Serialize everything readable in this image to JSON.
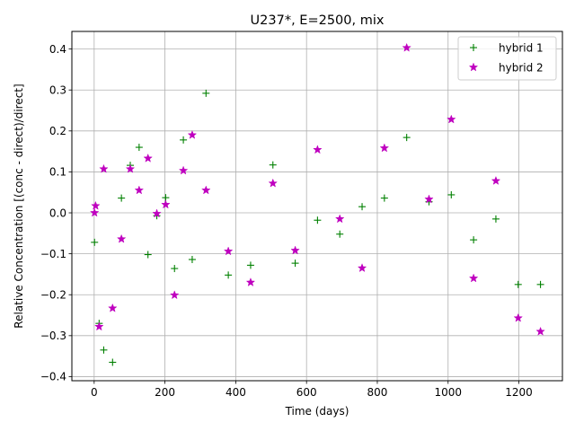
{
  "chart_data": {
    "type": "scatter",
    "title": "U237*, E=2500, mix",
    "xlabel": "Time (days)",
    "ylabel": "Relative Concentration [(conc - direct)/direct]",
    "xlim": [
      -63,
      1323
    ],
    "ylim": [
      -0.41,
      0.443
    ],
    "grid": true,
    "legend_position": "top-right",
    "xticks": [
      0,
      200,
      400,
      600,
      800,
      1000,
      1200
    ],
    "xtick_labels": [
      "0",
      "200",
      "400",
      "600",
      "800",
      "1000",
      "1200"
    ],
    "yticks": [
      -0.4,
      -0.3,
      -0.2,
      -0.1,
      0.0,
      0.1,
      0.2,
      0.3,
      0.4
    ],
    "ytick_labels": [
      "−0.4",
      "−0.3",
      "−0.2",
      "−0.1",
      "0.0",
      "0.1",
      "0.2",
      "0.3",
      "0.4"
    ],
    "series": [
      {
        "name": "hybrid 1",
        "marker": "plus",
        "color": "#008000",
        "x": [
          1,
          14,
          27,
          52,
          77,
          102,
          127,
          152,
          177,
          202,
          227,
          252,
          277,
          316,
          379,
          442,
          505,
          568,
          631,
          694,
          757,
          820,
          883,
          946,
          1009,
          1072,
          1135,
          1198,
          1261
        ],
        "y": [
          -0.072,
          -0.27,
          -0.335,
          -0.365,
          0.036,
          0.116,
          0.16,
          -0.102,
          -0.007,
          0.037,
          -0.136,
          0.178,
          -0.114,
          0.292,
          -0.152,
          -0.128,
          0.117,
          -0.123,
          -0.018,
          -0.052,
          0.015,
          0.036,
          0.184,
          0.027,
          0.044,
          -0.066,
          -0.015,
          -0.175,
          -0.175
        ]
      },
      {
        "name": "hybrid 2",
        "marker": "star",
        "color": "#bf00bf",
        "x": [
          1,
          4,
          14,
          27,
          52,
          77,
          102,
          127,
          152,
          177,
          202,
          227,
          252,
          277,
          316,
          379,
          442,
          505,
          568,
          631,
          694,
          757,
          820,
          883,
          946,
          1009,
          1072,
          1135,
          1198,
          1261
        ],
        "y": [
          0.0,
          0.017,
          -0.278,
          0.107,
          -0.233,
          -0.064,
          0.107,
          0.055,
          0.133,
          -0.002,
          0.02,
          -0.201,
          0.103,
          0.19,
          0.055,
          -0.094,
          -0.17,
          0.072,
          -0.092,
          0.154,
          -0.015,
          -0.135,
          0.158,
          0.403,
          0.033,
          0.228,
          -0.16,
          0.078,
          -0.257,
          -0.29
        ]
      }
    ]
  }
}
